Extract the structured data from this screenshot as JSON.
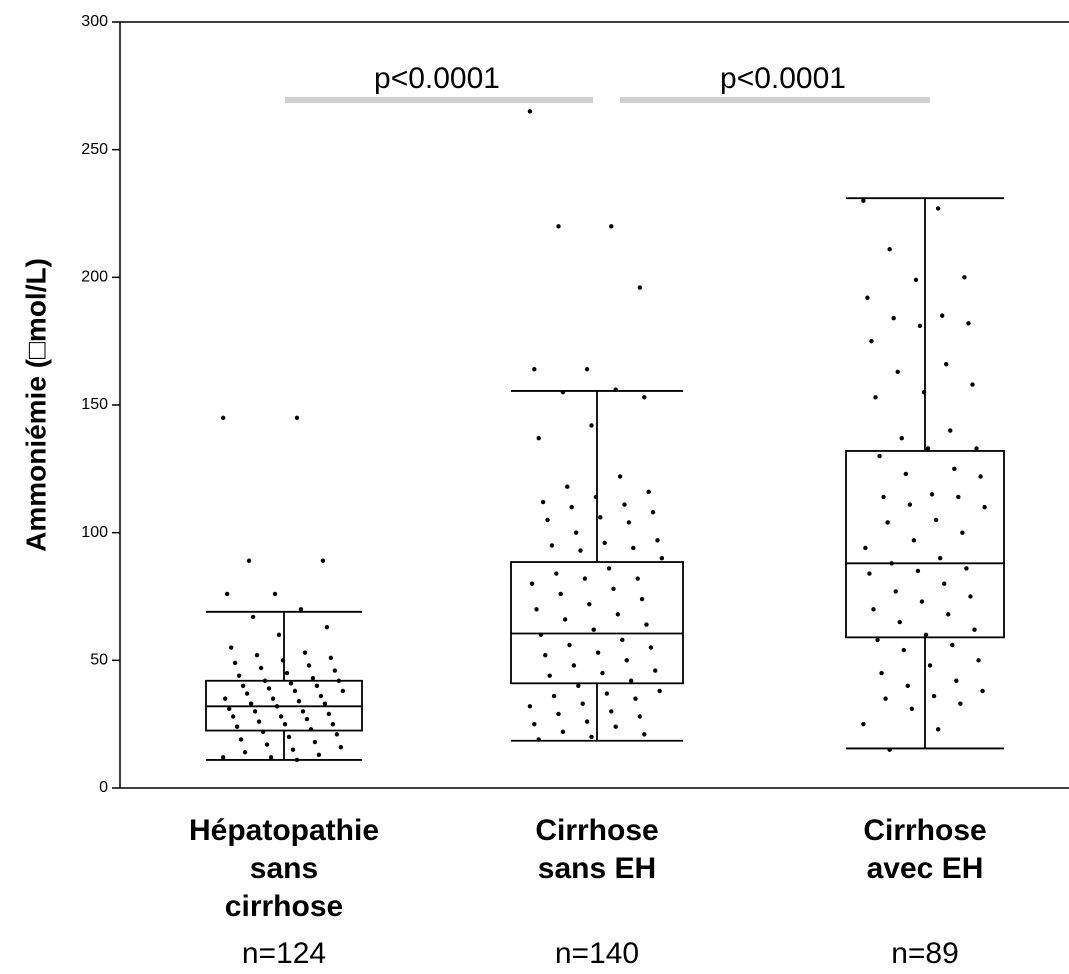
{
  "chart_data": {
    "type": "box",
    "y_label": "Ammoniémie (□mol/L)",
    "categories": [
      [
        "Hépatopathie",
        "sans",
        "cirrhose"
      ],
      [
        "Cirrhose",
        "sans EH"
      ],
      [
        "Cirrhose",
        "avec EH"
      ]
    ],
    "n_labels": [
      "n=124",
      "n=140",
      "n=89"
    ],
    "annotations": [
      "p<0.0001",
      "p<0.0001"
    ],
    "ylim": [
      0,
      300
    ],
    "yticks": [
      0,
      50,
      100,
      150,
      200,
      250,
      300
    ],
    "boxes": [
      {
        "whislo": 11,
        "q1": 22.5,
        "med": 32,
        "q3": 42,
        "whishi": 69,
        "points": [
          145,
          145,
          89,
          89,
          76,
          76,
          70,
          67,
          63,
          60,
          55,
          53,
          52,
          51,
          50,
          49,
          48,
          47,
          46,
          45,
          44,
          43,
          42,
          42,
          41,
          40,
          40,
          39,
          38,
          38,
          37,
          36,
          35,
          35,
          34,
          33,
          33,
          32,
          31,
          30,
          30,
          29,
          28,
          28,
          27,
          26,
          25,
          25,
          24,
          23,
          22,
          21,
          20,
          19,
          18,
          17,
          16,
          15,
          14,
          13,
          12,
          12,
          11
        ]
      },
      {
        "whislo": 18.5,
        "q1": 41,
        "med": 60.5,
        "q3": 88.5,
        "whishi": 155.5,
        "points": [
          265,
          220,
          220,
          196,
          164,
          164,
          156,
          155,
          153,
          142,
          137,
          122,
          118,
          116,
          114,
          112,
          111,
          110,
          108,
          106,
          105,
          104,
          100,
          97,
          96,
          95,
          94,
          93,
          90,
          86,
          84,
          82,
          82,
          80,
          78,
          76,
          74,
          72,
          70,
          68,
          66,
          64,
          62,
          60,
          58,
          56,
          55,
          53,
          52,
          50,
          48,
          46,
          45,
          44,
          42,
          40,
          38,
          37,
          36,
          35,
          33,
          32,
          30,
          29,
          28,
          26,
          25,
          24,
          22,
          21,
          20,
          19
        ]
      },
      {
        "whislo": 15.5,
        "q1": 59,
        "med": 88,
        "q3": 132,
        "whishi": 231,
        "points": [
          230,
          227,
          211,
          200,
          199,
          192,
          185,
          184,
          182,
          181,
          175,
          166,
          163,
          158,
          155,
          153,
          140,
          137,
          133,
          133,
          130,
          125,
          123,
          122,
          115,
          114,
          114,
          111,
          110,
          105,
          104,
          100,
          97,
          94,
          90,
          88,
          86,
          85,
          84,
          80,
          77,
          75,
          73,
          70,
          68,
          65,
          62,
          60,
          58,
          56,
          54,
          50,
          48,
          45,
          42,
          40,
          38,
          36,
          35,
          33,
          31,
          25,
          23,
          15
        ]
      }
    ]
  }
}
